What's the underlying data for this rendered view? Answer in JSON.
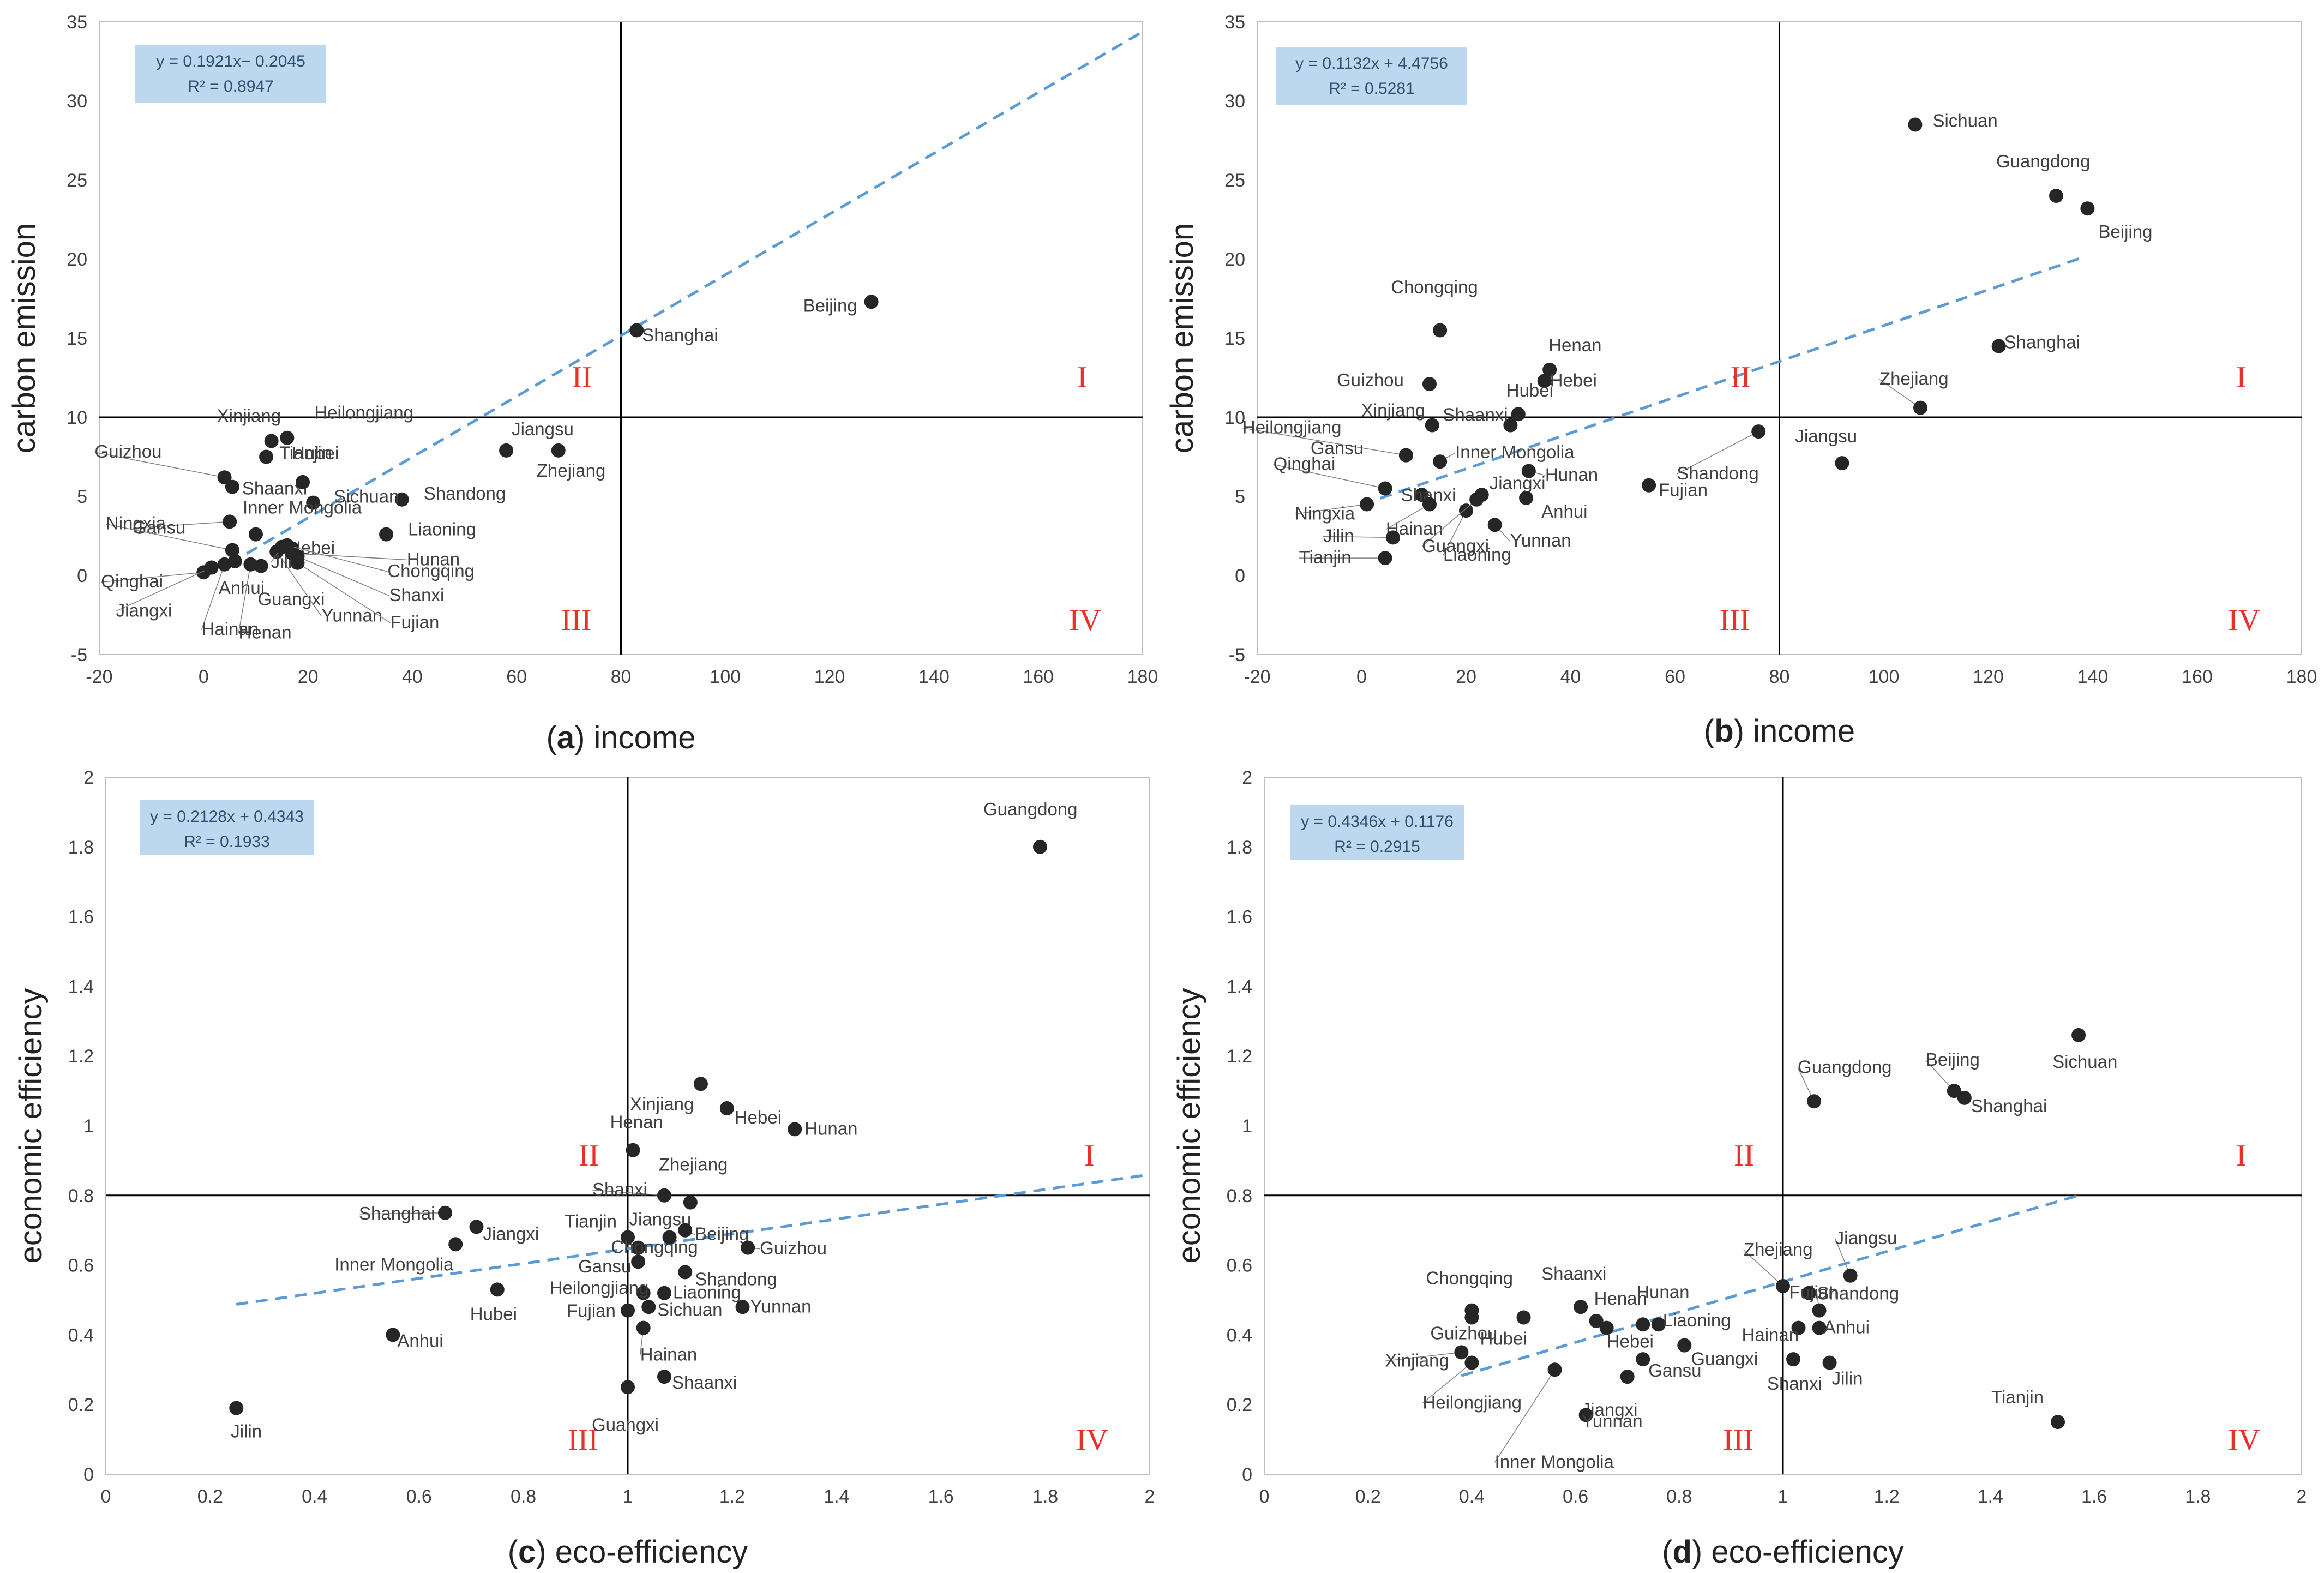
{
  "chart_data": [
    {
      "type": "scatter",
      "panel": "a",
      "caption_letter": "a",
      "caption_text": "income",
      "ylabel": "carbon emission",
      "xlim": [
        -20,
        180
      ],
      "ylim": [
        -5,
        35
      ],
      "xticks": [
        -20,
        0,
        20,
        40,
        60,
        80,
        100,
        120,
        140,
        160,
        180
      ],
      "yticks": [
        -5,
        0,
        5,
        10,
        15,
        20,
        25,
        30,
        35
      ],
      "divider": {
        "x": 80,
        "y": 10
      },
      "equation": "y = 0.1921x− 0.2045",
      "r2": "R² = 0.8947",
      "trendline": {
        "slope": 0.1921,
        "intercept": -0.2045,
        "x_from": 5,
        "x_to": 180
      },
      "quadrants": {
        "I": "I",
        "II": "II",
        "III": "III",
        "IV": "IV"
      },
      "points": [
        {
          "name": "Beijing",
          "x": 128,
          "y": 17.3
        },
        {
          "name": "Shanghai",
          "x": 83,
          "y": 15.5
        },
        {
          "name": "Jiangsu",
          "x": 58,
          "y": 7.9
        },
        {
          "name": "Zhejiang",
          "x": 68,
          "y": 7.9
        },
        {
          "name": "Shandong",
          "x": 38,
          "y": 4.8
        },
        {
          "name": "Sichuan",
          "x": 21,
          "y": 4.6
        },
        {
          "name": "Liaoning",
          "x": 35,
          "y": 2.6
        },
        {
          "name": "Xinjiang",
          "x": 13,
          "y": 8.5
        },
        {
          "name": "Heilongjiang",
          "x": 16,
          "y": 8.7
        },
        {
          "name": "Tianjin",
          "x": 12,
          "y": 7.5
        },
        {
          "name": "Guizhou",
          "x": 4,
          "y": 6.2
        },
        {
          "name": "Shaanxi",
          "x": 5.5,
          "y": 5.6
        },
        {
          "name": "Hubei",
          "x": 19,
          "y": 5.9
        },
        {
          "name": "Gansu",
          "x": 5,
          "y": 3.4
        },
        {
          "name": "Inner Mongolia",
          "x": 10,
          "y": 2.6
        },
        {
          "name": "Hebei",
          "x": 17,
          "y": 1.7
        },
        {
          "name": "Ningxia",
          "x": 5.5,
          "y": 1.6
        },
        {
          "name": "Qinghai",
          "x": 0,
          "y": 0.2
        },
        {
          "name": "Jiangxi",
          "x": 1.5,
          "y": 0.5
        },
        {
          "name": "Hainan",
          "x": 4,
          "y": 0.7
        },
        {
          "name": "Anhui",
          "x": 6,
          "y": 0.9
        },
        {
          "name": "Henan",
          "x": 9,
          "y": 0.7
        },
        {
          "name": "Guangxi",
          "x": 11,
          "y": 0.6
        },
        {
          "name": "Yunnan",
          "x": 14,
          "y": 1.5
        },
        {
          "name": "Jilin",
          "x": 15,
          "y": 1.8
        },
        {
          "name": "Hunan",
          "x": 17,
          "y": 1.4
        },
        {
          "name": "Chongqing",
          "x": 16,
          "y": 1.9
        },
        {
          "name": "Shanxi",
          "x": 18,
          "y": 1.2
        },
        {
          "name": "Fujian",
          "x": 18,
          "y": 0.8
        }
      ]
    },
    {
      "type": "scatter",
      "panel": "b",
      "caption_letter": "b",
      "caption_text": "income",
      "ylabel": "carbon emission",
      "xlim": [
        -20,
        180
      ],
      "ylim": [
        -5,
        35
      ],
      "xticks": [
        -20,
        0,
        20,
        40,
        60,
        80,
        100,
        120,
        140,
        160,
        180
      ],
      "yticks": [
        -5,
        0,
        5,
        10,
        15,
        20,
        25,
        30,
        35
      ],
      "divider": {
        "x": 80,
        "y": 10
      },
      "equation": "y = 0.1132x + 4.4756",
      "r2": "R² = 0.5281",
      "trendline": {
        "slope": 0.1132,
        "intercept": 4.4756,
        "x_from": 0,
        "x_to": 138
      },
      "quadrants": {
        "I": "I",
        "II": "II",
        "III": "III",
        "IV": "IV"
      },
      "points": [
        {
          "name": "Sichuan",
          "x": 106,
          "y": 28.5
        },
        {
          "name": "Guangdong",
          "x": 133,
          "y": 24
        },
        {
          "name": "Beijing",
          "x": 139,
          "y": 23.2
        },
        {
          "name": "Shanghai",
          "x": 122,
          "y": 14.5
        },
        {
          "name": "Zhejiang",
          "x": 107,
          "y": 10.6
        },
        {
          "name": "Shandong",
          "x": 76,
          "y": 9.1
        },
        {
          "name": "Jiangsu",
          "x": 92,
          "y": 7.1
        },
        {
          "name": "Fujian",
          "x": 55,
          "y": 5.7
        },
        {
          "name": "Chongqing",
          "x": 15,
          "y": 15.5
        },
        {
          "name": "Henan",
          "x": 36,
          "y": 13
        },
        {
          "name": "Hebei",
          "x": 35,
          "y": 12.3
        },
        {
          "name": "Guizhou",
          "x": 13,
          "y": 12.1
        },
        {
          "name": "Hubei",
          "x": 30,
          "y": 10.2
        },
        {
          "name": "Shaanxi",
          "x": 28.5,
          "y": 9.5
        },
        {
          "name": "Xinjiang",
          "x": 13.5,
          "y": 9.5
        },
        {
          "name": "Heilongjiang",
          "x": 8.5,
          "y": 7.6
        },
        {
          "name": "Gansu",
          "x": 8.5,
          "y": 7.6
        },
        {
          "name": "Inner Mongolia",
          "x": 15,
          "y": 7.2
        },
        {
          "name": "Qinghai",
          "x": 4.5,
          "y": 5.5
        },
        {
          "name": "Hunan",
          "x": 32,
          "y": 6.6
        },
        {
          "name": "Jiangxi",
          "x": 23,
          "y": 5.1
        },
        {
          "name": "Shanxi",
          "x": 11.5,
          "y": 5.1
        },
        {
          "name": "Ningxia",
          "x": 1,
          "y": 4.5
        },
        {
          "name": "Hainan",
          "x": 13,
          "y": 4.5
        },
        {
          "name": "Anhui",
          "x": 31.5,
          "y": 4.9
        },
        {
          "name": "Yunnan",
          "x": 25.5,
          "y": 3.2
        },
        {
          "name": "Liaoning",
          "x": 20,
          "y": 4.1
        },
        {
          "name": "Jilin",
          "x": 6,
          "y": 2.4
        },
        {
          "name": "Guangxi",
          "x": 22,
          "y": 4.8
        },
        {
          "name": "Tianjin",
          "x": 4.5,
          "y": 1.1
        }
      ]
    },
    {
      "type": "scatter",
      "panel": "c",
      "caption_letter": "c",
      "caption_text": "eco-efficiency",
      "ylabel": "economic efficiency",
      "xlim": [
        0,
        2
      ],
      "ylim": [
        0,
        2
      ],
      "xticks": [
        0,
        0.2,
        0.4,
        0.6,
        0.8,
        1,
        1.2,
        1.4,
        1.6,
        1.8,
        2
      ],
      "yticks": [
        0,
        0.2,
        0.4,
        0.6,
        0.8,
        1,
        1.2,
        1.4,
        1.6,
        1.8,
        2
      ],
      "divider": {
        "x": 1,
        "y": 0.8
      },
      "equation": "y = 0.2128x + 0.4343",
      "r2": "R² = 0.1933",
      "trendline": {
        "slope": 0.2128,
        "intercept": 0.4343,
        "x_from": 0.25,
        "x_to": 2
      },
      "quadrants": {
        "I": "I",
        "II": "II",
        "III": "III",
        "IV": "IV"
      },
      "points": [
        {
          "name": "Guangdong",
          "x": 1.79,
          "y": 1.8
        },
        {
          "name": "Xinjiang",
          "x": 1.14,
          "y": 1.12
        },
        {
          "name": "Hebei",
          "x": 1.19,
          "y": 1.05
        },
        {
          "name": "Hunan",
          "x": 1.32,
          "y": 0.99
        },
        {
          "name": "Henan",
          "x": 1.01,
          "y": 0.93
        },
        {
          "name": "Zhejiang",
          "x": 1.12,
          "y": 0.78
        },
        {
          "name": "Shanxi",
          "x": 1.07,
          "y": 0.8
        },
        {
          "name": "Shanghai",
          "x": 0.65,
          "y": 0.75
        },
        {
          "name": "Jiangxi",
          "x": 0.71,
          "y": 0.71
        },
        {
          "name": "Inner Mongolia",
          "x": 0.67,
          "y": 0.66
        },
        {
          "name": "Tianjin",
          "x": 1.0,
          "y": 0.68
        },
        {
          "name": "Jiangsu",
          "x": 1.08,
          "y": 0.68
        },
        {
          "name": "Beijing",
          "x": 1.11,
          "y": 0.7
        },
        {
          "name": "Chongqing",
          "x": 1.02,
          "y": 0.65
        },
        {
          "name": "Guizhou",
          "x": 1.23,
          "y": 0.65
        },
        {
          "name": "Hubei",
          "x": 0.75,
          "y": 0.53
        },
        {
          "name": "Gansu",
          "x": 1.02,
          "y": 0.61
        },
        {
          "name": "Shandong",
          "x": 1.11,
          "y": 0.58
        },
        {
          "name": "Heilongjiang",
          "x": 1.03,
          "y": 0.52
        },
        {
          "name": "Fujian",
          "x": 1.0,
          "y": 0.47
        },
        {
          "name": "Liaoning",
          "x": 1.07,
          "y": 0.52
        },
        {
          "name": "Sichuan",
          "x": 1.04,
          "y": 0.48
        },
        {
          "name": "Yunnan",
          "x": 1.22,
          "y": 0.48
        },
        {
          "name": "Hainan",
          "x": 1.03,
          "y": 0.42
        },
        {
          "name": "Anhui",
          "x": 0.55,
          "y": 0.4
        },
        {
          "name": "Shaanxi",
          "x": 1.07,
          "y": 0.28
        },
        {
          "name": "Guangxi",
          "x": 1.0,
          "y": 0.25
        },
        {
          "name": "Jilin",
          "x": 0.25,
          "y": 0.19
        }
      ]
    },
    {
      "type": "scatter",
      "panel": "d",
      "caption_letter": "d",
      "caption_text": "eco-efficiency",
      "ylabel": "economic efficiency",
      "xlim": [
        0,
        2
      ],
      "ylim": [
        0,
        2
      ],
      "xticks": [
        0,
        0.2,
        0.4,
        0.6,
        0.8,
        1,
        1.2,
        1.4,
        1.6,
        1.8,
        2
      ],
      "yticks": [
        0,
        0.2,
        0.4,
        0.6,
        0.8,
        1,
        1.2,
        1.4,
        1.6,
        1.8,
        2
      ],
      "divider": {
        "x": 1,
        "y": 0.8
      },
      "equation": "y = 0.4346x + 0.1176",
      "r2": "R² = 0.2915",
      "trendline": {
        "slope": 0.4346,
        "intercept": 0.1176,
        "x_from": 0.38,
        "x_to": 1.57
      },
      "quadrants": {
        "I": "I",
        "II": "II",
        "III": "III",
        "IV": "IV"
      },
      "points": [
        {
          "name": "Sichuan",
          "x": 1.57,
          "y": 1.26
        },
        {
          "name": "Beijing",
          "x": 1.33,
          "y": 1.1
        },
        {
          "name": "Shanghai",
          "x": 1.35,
          "y": 1.08
        },
        {
          "name": "Guangdong",
          "x": 1.06,
          "y": 1.07
        },
        {
          "name": "Jiangsu",
          "x": 1.13,
          "y": 0.57
        },
        {
          "name": "Zhejiang",
          "x": 1.0,
          "y": 0.54
        },
        {
          "name": "Fujian",
          "x": 1.05,
          "y": 0.52
        },
        {
          "name": "Shandong",
          "x": 1.07,
          "y": 0.47
        },
        {
          "name": "Hainan",
          "x": 1.03,
          "y": 0.42
        },
        {
          "name": "Anhui",
          "x": 1.07,
          "y": 0.42
        },
        {
          "name": "Shanxi",
          "x": 1.02,
          "y": 0.33
        },
        {
          "name": "Jilin",
          "x": 1.09,
          "y": 0.32
        },
        {
          "name": "Tianjin",
          "x": 1.53,
          "y": 0.15
        },
        {
          "name": "Chongqing",
          "x": 0.4,
          "y": 0.47
        },
        {
          "name": "Shaanxi",
          "x": 0.61,
          "y": 0.48
        },
        {
          "name": "Henan",
          "x": 0.64,
          "y": 0.44
        },
        {
          "name": "Hunan",
          "x": 0.73,
          "y": 0.43
        },
        {
          "name": "Guizhou",
          "x": 0.4,
          "y": 0.45
        },
        {
          "name": "Hubei",
          "x": 0.5,
          "y": 0.45
        },
        {
          "name": "Hebei",
          "x": 0.66,
          "y": 0.42
        },
        {
          "name": "Liaoning",
          "x": 0.76,
          "y": 0.43
        },
        {
          "name": "Guangxi",
          "x": 0.81,
          "y": 0.37
        },
        {
          "name": "Gansu",
          "x": 0.73,
          "y": 0.33
        },
        {
          "name": "Jiangxi",
          "x": 0.7,
          "y": 0.28
        },
        {
          "name": "Xinjiang",
          "x": 0.38,
          "y": 0.35
        },
        {
          "name": "Heilongjiang",
          "x": 0.4,
          "y": 0.32
        },
        {
          "name": "Inner Mongolia",
          "x": 0.56,
          "y": 0.3
        },
        {
          "name": "Yunnan",
          "x": 0.62,
          "y": 0.17
        }
      ]
    }
  ]
}
